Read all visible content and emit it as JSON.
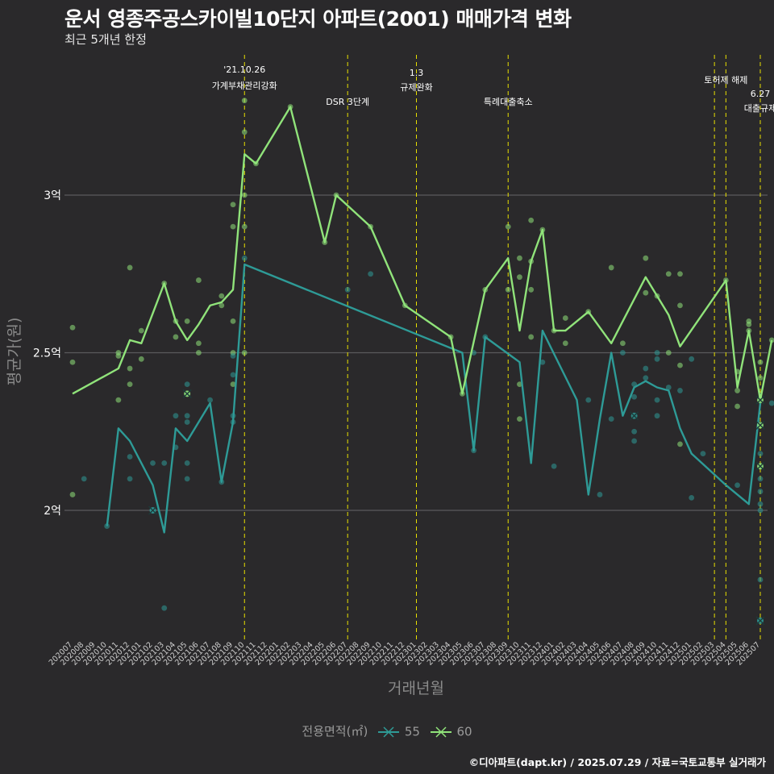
{
  "chart_data": {
    "type": "line",
    "title": "운서 영종주공스카이빌10단지 아파트(2001) 매매가격 변화",
    "subtitle": "최근 5개년 한정",
    "xlabel": "거래년월",
    "ylabel": "평균가(원)",
    "ylim": [
      1.6,
      3.6
    ],
    "yticks": [
      {
        "value": 2.0,
        "label": "2억"
      },
      {
        "value": 2.5,
        "label": "2.5억"
      },
      {
        "value": 3.0,
        "label": "3억"
      }
    ],
    "x": [
      "202007",
      "202008",
      "202009",
      "202010",
      "202011",
      "202012",
      "202101",
      "202102",
      "202103",
      "202104",
      "202105",
      "202106",
      "202107",
      "202108",
      "202109",
      "202110",
      "202111",
      "202112",
      "202201",
      "202202",
      "202203",
      "202204",
      "202205",
      "202206",
      "202207",
      "202208",
      "202209",
      "202210",
      "202211",
      "202212",
      "202301",
      "202302",
      "202303",
      "202304",
      "202305",
      "202306",
      "202307",
      "202308",
      "202309",
      "202310",
      "202311",
      "202312",
      "202401",
      "202402",
      "202403",
      "202404",
      "202405",
      "202406",
      "202407",
      "202408",
      "202409",
      "202410",
      "202411",
      "202412",
      "202501",
      "202502",
      "202503",
      "202504",
      "202505",
      "202506",
      "202507"
    ],
    "grid": true,
    "legend_position": "bottom",
    "legend_title": "전용면적(㎡)",
    "series": [
      {
        "name": "55",
        "color": "#2e9b97",
        "points": [
          [
            3,
            1.95
          ],
          [
            4,
            2.26
          ],
          [
            5,
            2.22
          ],
          [
            7,
            2.08
          ],
          [
            8,
            1.93
          ],
          [
            9,
            2.26
          ],
          [
            10,
            2.22
          ],
          [
            12,
            2.34
          ],
          [
            13,
            2.09
          ],
          [
            14,
            2.28
          ],
          [
            15,
            2.78
          ],
          [
            34,
            2.5
          ],
          [
            35,
            2.19
          ],
          [
            36,
            2.55
          ],
          [
            39,
            2.47
          ],
          [
            40,
            2.15
          ],
          [
            41,
            2.57
          ],
          [
            44,
            2.35
          ],
          [
            45,
            2.05
          ],
          [
            46,
            2.29
          ],
          [
            47,
            2.5
          ],
          [
            48,
            2.3
          ],
          [
            49,
            2.39
          ],
          [
            50,
            2.41
          ],
          [
            51,
            2.39
          ],
          [
            52,
            2.38
          ],
          [
            53,
            2.26
          ],
          [
            54,
            2.18
          ],
          [
            57,
            2.08
          ],
          [
            59,
            2.02
          ],
          [
            60,
            2.34
          ]
        ]
      },
      {
        "name": "60",
        "color": "#90e37a",
        "points": [
          [
            0,
            2.37
          ],
          [
            4,
            2.45
          ],
          [
            5,
            2.54
          ],
          [
            6,
            2.53
          ],
          [
            8,
            2.72
          ],
          [
            9,
            2.6
          ],
          [
            10,
            2.54
          ],
          [
            11,
            2.59
          ],
          [
            12,
            2.65
          ],
          [
            13,
            2.66
          ],
          [
            14,
            2.7
          ],
          [
            15,
            3.13
          ],
          [
            16,
            3.1
          ],
          [
            19,
            3.28
          ],
          [
            22,
            2.85
          ],
          [
            23,
            3.0
          ],
          [
            26,
            2.9
          ],
          [
            29,
            2.65
          ],
          [
            33,
            2.55
          ],
          [
            34,
            2.37
          ],
          [
            36,
            2.7
          ],
          [
            38,
            2.8
          ],
          [
            39,
            2.57
          ],
          [
            40,
            2.79
          ],
          [
            41,
            2.89
          ],
          [
            42,
            2.57
          ],
          [
            43,
            2.57
          ],
          [
            45,
            2.63
          ],
          [
            47,
            2.53
          ],
          [
            50,
            2.74
          ],
          [
            52,
            2.62
          ],
          [
            53,
            2.52
          ],
          [
            57,
            2.73
          ],
          [
            58,
            2.39
          ],
          [
            59,
            2.57
          ],
          [
            60,
            2.35
          ],
          [
            61,
            2.54
          ]
        ]
      }
    ],
    "transactions": [
      {
        "size": "60",
        "idx": 0,
        "v": 2.58
      },
      {
        "size": "60",
        "idx": 0,
        "v": 2.47
      },
      {
        "size": "60",
        "idx": 0,
        "v": 2.05
      },
      {
        "size": "55",
        "idx": 1,
        "v": 2.1
      },
      {
        "size": "55",
        "idx": 3,
        "v": 1.95
      },
      {
        "size": "60",
        "idx": 4,
        "v": 2.5
      },
      {
        "size": "60",
        "idx": 4,
        "v": 2.49
      },
      {
        "size": "60",
        "idx": 4,
        "v": 2.35
      },
      {
        "size": "60",
        "idx": 5,
        "v": 2.77
      },
      {
        "size": "60",
        "idx": 5,
        "v": 2.45
      },
      {
        "size": "60",
        "idx": 5,
        "v": 2.4
      },
      {
        "size": "55",
        "idx": 5,
        "v": 2.17
      },
      {
        "size": "55",
        "idx": 5,
        "v": 2.1
      },
      {
        "size": "60",
        "idx": 6,
        "v": 2.57
      },
      {
        "size": "60",
        "idx": 6,
        "v": 2.48
      },
      {
        "size": "55",
        "idx": 7,
        "v": 2.15
      },
      {
        "size": "55",
        "idx": 7,
        "v": 2.0
      },
      {
        "size": "60",
        "idx": 8,
        "v": 2.72
      },
      {
        "size": "55",
        "idx": 8,
        "v": 2.15
      },
      {
        "size": "55",
        "idx": 8,
        "v": 1.69
      },
      {
        "size": "60",
        "idx": 9,
        "v": 2.6
      },
      {
        "size": "60",
        "idx": 9,
        "v": 2.55
      },
      {
        "size": "55",
        "idx": 9,
        "v": 2.3
      },
      {
        "size": "55",
        "idx": 9,
        "v": 2.2
      },
      {
        "size": "60",
        "idx": 10,
        "v": 2.6
      },
      {
        "size": "60",
        "idx": 10,
        "v": 2.37
      },
      {
        "size": "55",
        "idx": 10,
        "v": 2.4
      },
      {
        "size": "55",
        "idx": 10,
        "v": 2.3
      },
      {
        "size": "55",
        "idx": 10,
        "v": 2.28
      },
      {
        "size": "55",
        "idx": 10,
        "v": 2.15
      },
      {
        "size": "55",
        "idx": 10,
        "v": 2.1
      },
      {
        "size": "60",
        "idx": 11,
        "v": 2.73
      },
      {
        "size": "60",
        "idx": 11,
        "v": 2.53
      },
      {
        "size": "60",
        "idx": 11,
        "v": 2.5
      },
      {
        "size": "55",
        "idx": 12,
        "v": 2.35
      },
      {
        "size": "60",
        "idx": 13,
        "v": 2.68
      },
      {
        "size": "60",
        "idx": 13,
        "v": 2.65
      },
      {
        "size": "55",
        "idx": 13,
        "v": 2.09
      },
      {
        "size": "60",
        "idx": 14,
        "v": 2.97
      },
      {
        "size": "60",
        "idx": 14,
        "v": 2.9
      },
      {
        "size": "60",
        "idx": 14,
        "v": 2.6
      },
      {
        "size": "60",
        "idx": 14,
        "v": 2.5
      },
      {
        "size": "60",
        "idx": 14,
        "v": 2.4
      },
      {
        "size": "55",
        "idx": 14,
        "v": 2.49
      },
      {
        "size": "55",
        "idx": 14,
        "v": 2.43
      },
      {
        "size": "55",
        "idx": 14,
        "v": 2.3
      },
      {
        "size": "55",
        "idx": 14,
        "v": 2.28
      },
      {
        "size": "60",
        "idx": 15,
        "v": 3.3
      },
      {
        "size": "60",
        "idx": 15,
        "v": 3.2
      },
      {
        "size": "60",
        "idx": 15,
        "v": 3.0
      },
      {
        "size": "60",
        "idx": 15,
        "v": 2.9
      },
      {
        "size": "60",
        "idx": 15,
        "v": 2.5
      },
      {
        "size": "55",
        "idx": 15,
        "v": 2.8
      },
      {
        "size": "60",
        "idx": 16,
        "v": 3.1
      },
      {
        "size": "60",
        "idx": 19,
        "v": 3.28
      },
      {
        "size": "60",
        "idx": 22,
        "v": 2.85
      },
      {
        "size": "60",
        "idx": 23,
        "v": 3.0
      },
      {
        "size": "55",
        "idx": 24,
        "v": 2.7
      },
      {
        "size": "60",
        "idx": 26,
        "v": 2.9
      },
      {
        "size": "55",
        "idx": 26,
        "v": 2.75
      },
      {
        "size": "60",
        "idx": 29,
        "v": 2.65
      },
      {
        "size": "60",
        "idx": 33,
        "v": 2.55
      },
      {
        "size": "60",
        "idx": 34,
        "v": 2.37
      },
      {
        "size": "55",
        "idx": 35,
        "v": 2.5
      },
      {
        "size": "55",
        "idx": 35,
        "v": 2.19
      },
      {
        "size": "60",
        "idx": 36,
        "v": 2.7
      },
      {
        "size": "55",
        "idx": 36,
        "v": 2.55
      },
      {
        "size": "60",
        "idx": 38,
        "v": 2.9
      },
      {
        "size": "60",
        "idx": 38,
        "v": 2.7
      },
      {
        "size": "60",
        "idx": 39,
        "v": 2.8
      },
      {
        "size": "60",
        "idx": 39,
        "v": 2.74
      },
      {
        "size": "60",
        "idx": 39,
        "v": 2.4
      },
      {
        "size": "60",
        "idx": 39,
        "v": 2.29
      },
      {
        "size": "60",
        "idx": 40,
        "v": 2.92
      },
      {
        "size": "60",
        "idx": 40,
        "v": 2.79
      },
      {
        "size": "60",
        "idx": 40,
        "v": 2.7
      },
      {
        "size": "60",
        "idx": 40,
        "v": 2.55
      },
      {
        "size": "60",
        "idx": 41,
        "v": 2.89
      },
      {
        "size": "55",
        "idx": 41,
        "v": 2.47
      },
      {
        "size": "55",
        "idx": 42,
        "v": 2.14
      },
      {
        "size": "60",
        "idx": 42,
        "v": 2.57
      },
      {
        "size": "60",
        "idx": 43,
        "v": 2.61
      },
      {
        "size": "60",
        "idx": 43,
        "v": 2.53
      },
      {
        "size": "60",
        "idx": 45,
        "v": 2.63
      },
      {
        "size": "55",
        "idx": 45,
        "v": 2.35
      },
      {
        "size": "55",
        "idx": 46,
        "v": 2.05
      },
      {
        "size": "60",
        "idx": 47,
        "v": 2.77
      },
      {
        "size": "55",
        "idx": 47,
        "v": 2.29
      },
      {
        "size": "55",
        "idx": 48,
        "v": 2.5
      },
      {
        "size": "60",
        "idx": 48,
        "v": 2.53
      },
      {
        "size": "55",
        "idx": 49,
        "v": 2.4
      },
      {
        "size": "55",
        "idx": 49,
        "v": 2.36
      },
      {
        "size": "55",
        "idx": 49,
        "v": 2.25
      },
      {
        "size": "55",
        "idx": 49,
        "v": 2.22
      },
      {
        "size": "60",
        "idx": 50,
        "v": 2.8
      },
      {
        "size": "60",
        "idx": 50,
        "v": 2.69
      },
      {
        "size": "55",
        "idx": 50,
        "v": 2.45
      },
      {
        "size": "55",
        "idx": 50,
        "v": 2.42
      },
      {
        "size": "60",
        "idx": 51,
        "v": 2.68
      },
      {
        "size": "55",
        "idx": 51,
        "v": 2.5
      },
      {
        "size": "55",
        "idx": 51,
        "v": 2.48
      },
      {
        "size": "55",
        "idx": 51,
        "v": 2.35
      },
      {
        "size": "55",
        "idx": 51,
        "v": 2.3
      },
      {
        "size": "60",
        "idx": 52,
        "v": 2.75
      },
      {
        "size": "60",
        "idx": 52,
        "v": 2.5
      },
      {
        "size": "55",
        "idx": 52,
        "v": 2.39
      },
      {
        "size": "60",
        "idx": 53,
        "v": 2.75
      },
      {
        "size": "60",
        "idx": 53,
        "v": 2.65
      },
      {
        "size": "60",
        "idx": 53,
        "v": 2.46
      },
      {
        "size": "60",
        "idx": 53,
        "v": 2.21
      },
      {
        "size": "55",
        "idx": 53,
        "v": 2.38
      },
      {
        "size": "55",
        "idx": 54,
        "v": 2.48
      },
      {
        "size": "55",
        "idx": 54,
        "v": 2.04
      },
      {
        "size": "55",
        "idx": 55,
        "v": 2.18
      },
      {
        "size": "60",
        "idx": 57,
        "v": 2.73
      },
      {
        "size": "60",
        "idx": 58,
        "v": 2.44
      },
      {
        "size": "60",
        "idx": 58,
        "v": 2.38
      },
      {
        "size": "60",
        "idx": 58,
        "v": 2.33
      },
      {
        "size": "55",
        "idx": 58,
        "v": 2.08
      },
      {
        "size": "60",
        "idx": 59,
        "v": 2.6
      },
      {
        "size": "60",
        "idx": 59,
        "v": 2.59
      },
      {
        "size": "60",
        "idx": 59,
        "v": 2.57
      },
      {
        "size": "60",
        "idx": 60,
        "v": 2.47
      },
      {
        "size": "60",
        "idx": 60,
        "v": 2.42
      },
      {
        "size": "60",
        "idx": 60,
        "v": 2.35
      },
      {
        "size": "60",
        "idx": 60,
        "v": 2.27
      },
      {
        "size": "60",
        "idx": 60,
        "v": 2.14
      },
      {
        "size": "55",
        "idx": 60,
        "v": 2.18
      },
      {
        "size": "55",
        "idx": 60,
        "v": 2.1
      },
      {
        "size": "55",
        "idx": 60,
        "v": 2.06
      },
      {
        "size": "55",
        "idx": 60,
        "v": 2.02
      },
      {
        "size": "55",
        "idx": 60,
        "v": 2.0
      },
      {
        "size": "55",
        "idx": 60,
        "v": 1.78
      },
      {
        "size": "55",
        "idx": 60,
        "v": 1.65
      },
      {
        "size": "60",
        "idx": 61,
        "v": 2.54
      },
      {
        "size": "55",
        "idx": 61,
        "v": 2.34
      }
    ],
    "highlights": [
      {
        "size": "55",
        "idx": 7,
        "v": 2.0
      },
      {
        "size": "60",
        "idx": 10,
        "v": 2.37
      },
      {
        "size": "55",
        "idx": 49,
        "v": 2.3
      },
      {
        "size": "60",
        "idx": 60,
        "v": 2.35
      },
      {
        "size": "60",
        "idx": 60,
        "v": 2.27
      },
      {
        "size": "60",
        "idx": 60,
        "v": 2.14
      },
      {
        "size": "55",
        "idx": 60,
        "v": 1.65
      }
    ],
    "events": [
      {
        "idx": 15,
        "lines": [
          "'21.10.26",
          "가계부채관리강화"
        ]
      },
      {
        "idx": 24,
        "lines": [
          "DSR 3단계"
        ]
      },
      {
        "idx": 30,
        "lines": [
          "1.3",
          "규제완화"
        ]
      },
      {
        "idx": 38,
        "lines": [
          "특례대출축소"
        ]
      },
      {
        "idx": 56,
        "lines": [
          ""
        ]
      },
      {
        "idx": 57,
        "lines": [
          "토허제 해제"
        ]
      },
      {
        "idx": 60,
        "lines": [
          "6.27",
          "대출규제"
        ]
      }
    ]
  },
  "legend": {
    "title": "전용면적(㎡)",
    "item1": "55",
    "item2": "60"
  },
  "caption": "©디아파트(dapt.kr) / 2025.07.29 / 자료=국토교통부 실거래가"
}
